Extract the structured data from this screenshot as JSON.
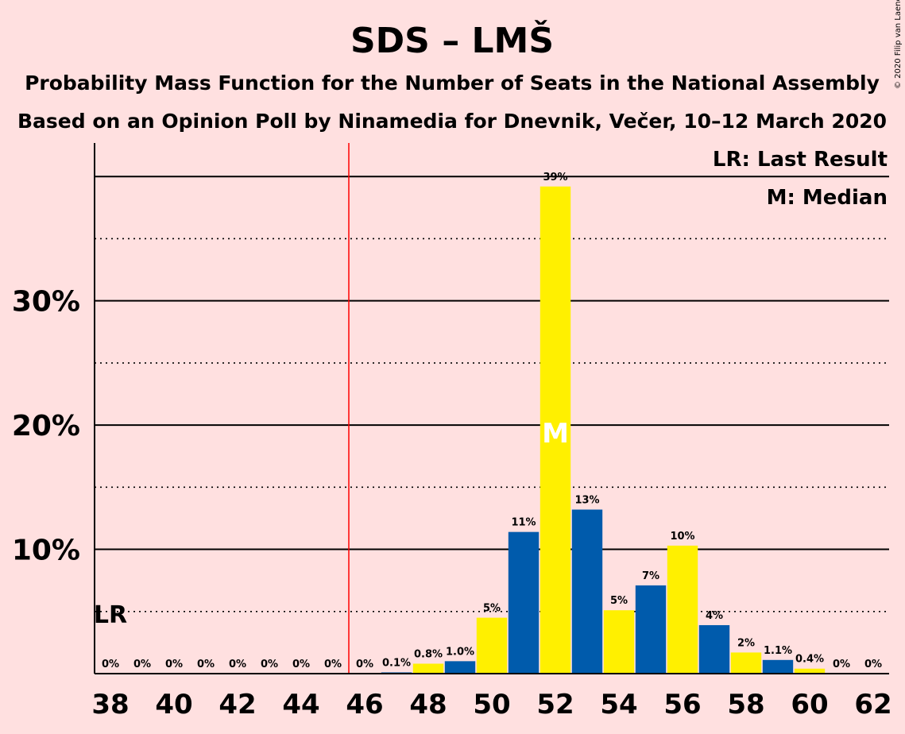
{
  "chart_data": {
    "type": "bar",
    "title": "SDS – LMŠ",
    "subtitle": "Probability Mass Function for the Number of Seats in the National Assembly",
    "subtitle2": "Based on an Opinion Poll by Ninamedia for Dnevnik, Večer, 10–12 March 2020",
    "copyright": "© 2020 Filip van Laenen",
    "legend": {
      "placement": "top-right",
      "last_result": "LR: Last Result",
      "median": "M: Median"
    },
    "x": [
      38,
      39,
      40,
      41,
      42,
      43,
      44,
      45,
      46,
      47,
      48,
      49,
      50,
      51,
      52,
      53,
      54,
      55,
      56,
      57,
      58,
      59,
      60,
      61,
      62
    ],
    "values": [
      0,
      0,
      0,
      0,
      0,
      0,
      0,
      0,
      0,
      0.1,
      0.8,
      1.0,
      4.5,
      11.4,
      39.2,
      13.2,
      5.1,
      7.1,
      10.3,
      3.9,
      1.7,
      1.1,
      0.4,
      0,
      0
    ],
    "data_labels": [
      "0%",
      "0%",
      "0%",
      "0%",
      "0%",
      "0%",
      "0%",
      "0%",
      "0%",
      "0.1%",
      "0.8%",
      "1.0%",
      "5%",
      "11%",
      "39%",
      "13%",
      "5%",
      "7%",
      "10%",
      "4%",
      "2%",
      "1.1%",
      "0.4%",
      "0%",
      "0%"
    ],
    "x_ticks": [
      "38",
      "40",
      "42",
      "44",
      "46",
      "48",
      "50",
      "52",
      "54",
      "56",
      "58",
      "60",
      "62"
    ],
    "y_ticks": [
      "10%",
      "20%",
      "30%"
    ],
    "y_tick_values": [
      10,
      20,
      30
    ],
    "ylim": [
      0,
      42.7
    ],
    "xlim": [
      37.5,
      62.5
    ],
    "grid": "solid every 10%, dotted every 5%",
    "last_result_seat": 38,
    "last_result_label": "LR",
    "majority_line": 45.5,
    "median_seat": 52,
    "median_label": "M",
    "colors": {
      "background": "#FFE0E0",
      "blue": "#005BAC",
      "yellow": "#FFF000",
      "majority_line": "#FF0000",
      "axis": "#000000"
    }
  }
}
